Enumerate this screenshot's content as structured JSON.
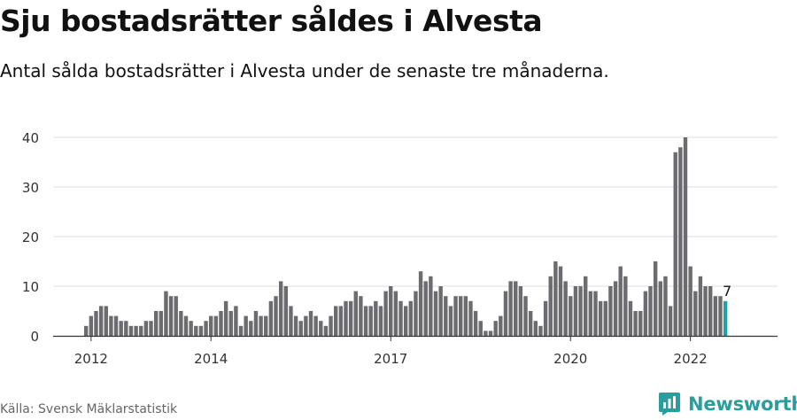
{
  "title": "Sju bostadsrätter såldes i Alvesta",
  "subtitle": "Antal sålda bostadsrätter i Alvesta under de senaste tre månaderna.",
  "source": "Källa: Svensk Mäklarstatistik",
  "brand": {
    "name": "Newsworthy",
    "icon": "newsworthy-logo-icon",
    "color": "#2a9d9d"
  },
  "chart_data": {
    "type": "bar",
    "title": "Sju bostadsrätter såldes i Alvesta",
    "xlabel": "",
    "ylabel": "",
    "ylim": [
      0,
      40
    ],
    "yticks": [
      "0",
      "10",
      "20",
      "30",
      "40"
    ],
    "xticks": [
      {
        "label": "2012",
        "index": 1
      },
      {
        "label": "2014",
        "index": 25
      },
      {
        "label": "2017",
        "index": 61
      },
      {
        "label": "2020",
        "index": 97
      },
      {
        "label": "2022",
        "index": 121
      }
    ],
    "grid": true,
    "bar_color": "#6b6b70",
    "highlight_color": "#1fa3a8",
    "highlight_label": "7",
    "values": [
      2,
      4,
      5,
      6,
      6,
      4,
      4,
      3,
      3,
      2,
      2,
      2,
      3,
      3,
      5,
      5,
      9,
      8,
      8,
      5,
      4,
      3,
      2,
      2,
      3,
      4,
      4,
      5,
      7,
      5,
      6,
      2,
      4,
      3,
      5,
      4,
      4,
      7,
      8,
      11,
      10,
      6,
      4,
      3,
      4,
      5,
      4,
      3,
      2,
      4,
      6,
      6,
      7,
      7,
      9,
      8,
      6,
      6,
      7,
      6,
      9,
      10,
      9,
      7,
      6,
      7,
      9,
      13,
      11,
      12,
      9,
      10,
      8,
      6,
      8,
      8,
      8,
      7,
      5,
      3,
      1,
      1,
      3,
      4,
      9,
      11,
      11,
      10,
      8,
      5,
      3,
      2,
      7,
      12,
      15,
      14,
      11,
      8,
      10,
      10,
      12,
      9,
      9,
      7,
      7,
      10,
      11,
      14,
      12,
      7,
      5,
      5,
      9,
      10,
      15,
      11,
      12,
      6,
      37,
      38,
      40,
      14,
      9,
      12,
      10,
      10,
      8,
      8,
      7
    ]
  }
}
